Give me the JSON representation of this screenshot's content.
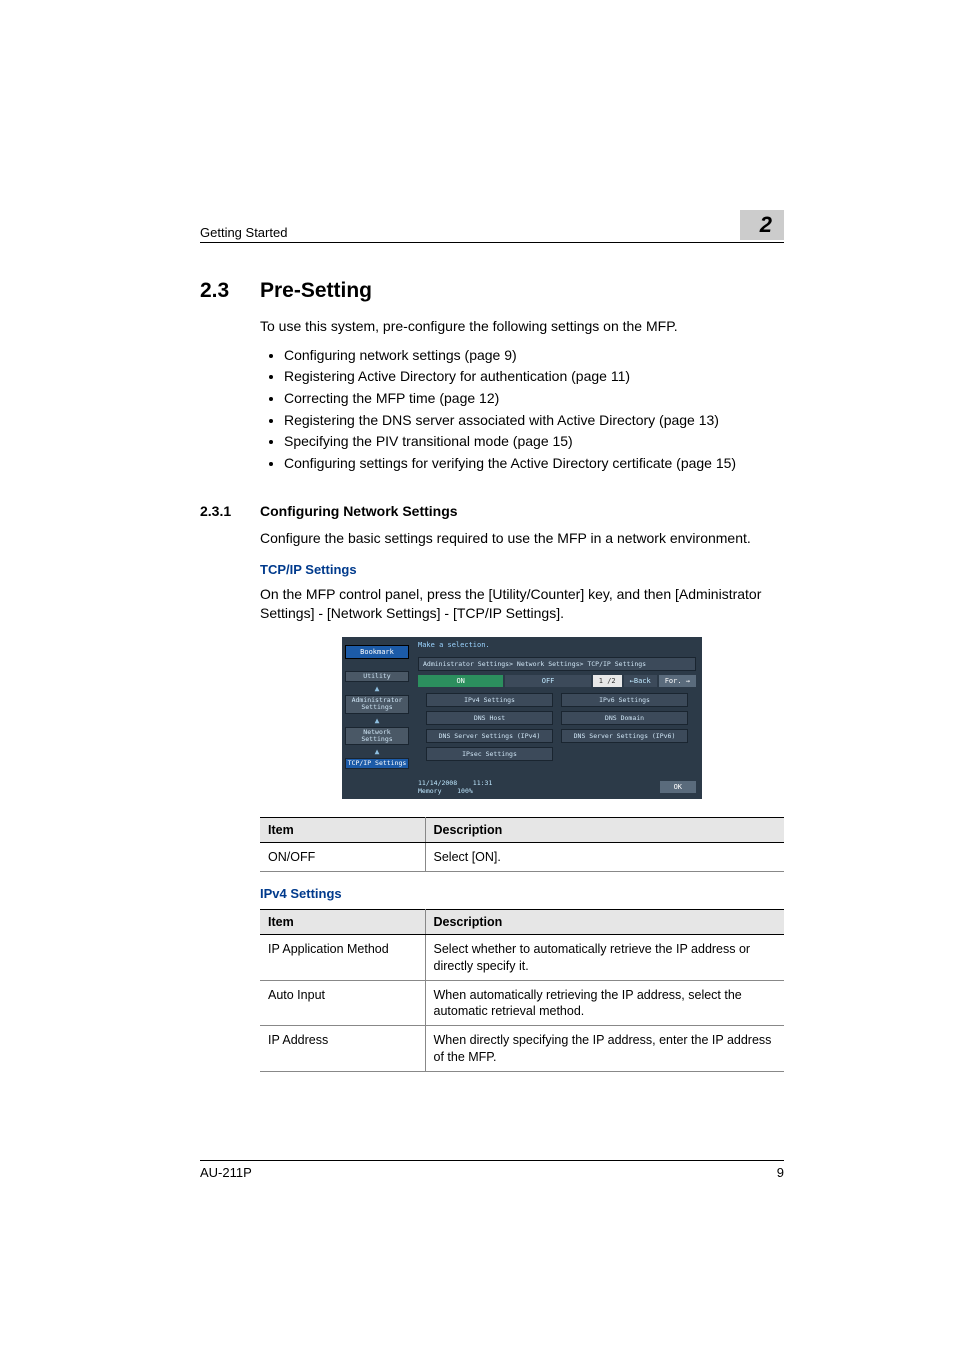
{
  "header": {
    "section": "Getting Started",
    "chapter": "2"
  },
  "section": {
    "number": "2.3",
    "title": "Pre-Setting"
  },
  "intro": "To use this system, pre-configure the following settings on the MFP.",
  "bullets": [
    "Configuring network settings (page 9)",
    "Registering Active Directory for authentication (page 11)",
    "Correcting the MFP time (page 12)",
    "Registering the DNS server associated with Active Directory (page 13)",
    "Specifying the PIV transitional mode (page 15)",
    "Configuring settings for verifying the Active Directory certificate (page 15)"
  ],
  "subsection": {
    "number": "2.3.1",
    "title": "Configuring Network Settings"
  },
  "subpara": "Configure the basic settings required to use the MFP in a network environment.",
  "tcpip_heading": "TCP/IP Settings",
  "tcpip_para": "On the MFP control panel, press the [Utility/Counter] key, and then [Administrator Settings] - [Network Settings] - [TCP/IP Settings].",
  "panel": {
    "make": "Make a selection.",
    "bookmark": "Bookmark",
    "nav": [
      "Utility",
      "Administrator Settings",
      "Network Settings",
      "TCP/IP Settings"
    ],
    "crumb": "Administrator Settings> Network Settings> TCP/IP Settings",
    "on": "ON",
    "off": "OFF",
    "page": "1 /2",
    "back": "←Back",
    "forw": "For. →",
    "rows": [
      [
        "IPv4 Settings",
        "IPv6 Settings"
      ],
      [
        "DNS Host",
        "DNS Domain"
      ],
      [
        "DNS Server Settings (IPv4)",
        "DNS Server Settings (IPv6)"
      ],
      [
        "IPsec Settings",
        ""
      ]
    ],
    "date": "11/14/2008",
    "time": "11:31",
    "mem": "Memory",
    "memv": "100%",
    "ok": "OK"
  },
  "table1": {
    "headers": [
      "Item",
      "Description"
    ],
    "rows": [
      [
        "ON/OFF",
        "Select [ON]."
      ]
    ]
  },
  "ipv4_heading": "IPv4 Settings",
  "table2": {
    "headers": [
      "Item",
      "Description"
    ],
    "rows": [
      [
        "IP Application Method",
        "Select whether to automatically retrieve the IP address or directly specify it."
      ],
      [
        "Auto Input",
        "When automatically retrieving the IP address, select the automatic retrieval method."
      ],
      [
        "IP Address",
        "When directly specifying the IP address, enter the IP address of the MFP."
      ]
    ]
  },
  "footer": {
    "model": "AU-211P",
    "page": "9"
  }
}
